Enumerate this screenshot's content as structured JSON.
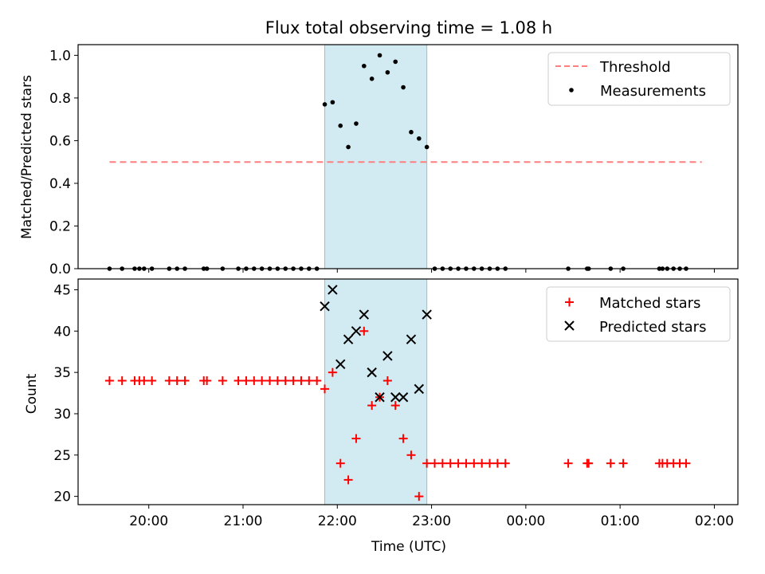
{
  "chart_data": [
    {
      "type": "scatter",
      "title": "Flux total observing time = 1.08 h",
      "ylabel": "Matched/Predicted stars",
      "xlabel": "",
      "ylim": [
        0,
        1.05
      ],
      "yticks": [
        0.0,
        0.2,
        0.4,
        0.6,
        0.8,
        1.0
      ],
      "ytick_labels": [
        "0.0",
        "0.2",
        "0.4",
        "0.6",
        "0.8",
        "1.0"
      ],
      "x_range_hours": [
        19.25,
        26.25
      ],
      "highlight_span": {
        "start": "21:52",
        "end": "22:57",
        "color": "#add8e6"
      },
      "legend_position": "top-right",
      "threshold": {
        "name": "Threshold",
        "value": 0.5,
        "start": "19:35",
        "end": "01:52",
        "color": "#ff7f7f",
        "style": "dashed"
      },
      "series": [
        {
          "name": "Measurements",
          "color": "#000000",
          "marker": "dot",
          "points": [
            {
              "time": "19:35",
              "value": 0
            },
            {
              "time": "19:43",
              "value": 0
            },
            {
              "time": "19:51",
              "value": 0
            },
            {
              "time": "19:54",
              "value": 0
            },
            {
              "time": "19:57",
              "value": 0
            },
            {
              "time": "20:02",
              "value": 0
            },
            {
              "time": "20:13",
              "value": 0
            },
            {
              "time": "20:18",
              "value": 0
            },
            {
              "time": "20:23",
              "value": 0
            },
            {
              "time": "20:35",
              "value": 0
            },
            {
              "time": "20:37",
              "value": 0
            },
            {
              "time": "20:47",
              "value": 0
            },
            {
              "time": "20:57",
              "value": 0
            },
            {
              "time": "21:02",
              "value": 0
            },
            {
              "time": "21:07",
              "value": 0
            },
            {
              "time": "21:12",
              "value": 0
            },
            {
              "time": "21:17",
              "value": 0
            },
            {
              "time": "21:22",
              "value": 0
            },
            {
              "time": "21:27",
              "value": 0
            },
            {
              "time": "21:32",
              "value": 0
            },
            {
              "time": "21:37",
              "value": 0
            },
            {
              "time": "21:42",
              "value": 0
            },
            {
              "time": "21:47",
              "value": 0
            },
            {
              "time": "21:52",
              "value": 0.77
            },
            {
              "time": "21:57",
              "value": 0.78
            },
            {
              "time": "22:02",
              "value": 0.67
            },
            {
              "time": "22:07",
              "value": 0.57
            },
            {
              "time": "22:12",
              "value": 0.68
            },
            {
              "time": "22:17",
              "value": 0.95
            },
            {
              "time": "22:22",
              "value": 0.89
            },
            {
              "time": "22:27",
              "value": 1.0
            },
            {
              "time": "22:32",
              "value": 0.92
            },
            {
              "time": "22:37",
              "value": 0.97
            },
            {
              "time": "22:42",
              "value": 0.85
            },
            {
              "time": "22:47",
              "value": 0.64
            },
            {
              "time": "22:52",
              "value": 0.61
            },
            {
              "time": "22:57",
              "value": 0.57
            },
            {
              "time": "23:02",
              "value": 0
            },
            {
              "time": "23:07",
              "value": 0
            },
            {
              "time": "23:12",
              "value": 0
            },
            {
              "time": "23:17",
              "value": 0
            },
            {
              "time": "23:22",
              "value": 0
            },
            {
              "time": "23:27",
              "value": 0
            },
            {
              "time": "23:32",
              "value": 0
            },
            {
              "time": "23:37",
              "value": 0
            },
            {
              "time": "23:42",
              "value": 0
            },
            {
              "time": "23:47",
              "value": 0
            },
            {
              "time": "00:27",
              "value": 0
            },
            {
              "time": "00:39",
              "value": 0
            },
            {
              "time": "00:40",
              "value": 0
            },
            {
              "time": "00:54",
              "value": 0
            },
            {
              "time": "01:02",
              "value": 0
            },
            {
              "time": "01:25",
              "value": 0
            },
            {
              "time": "01:27",
              "value": 0
            },
            {
              "time": "01:30",
              "value": 0
            },
            {
              "time": "01:34",
              "value": 0
            },
            {
              "time": "01:38",
              "value": 0
            },
            {
              "time": "01:42",
              "value": 0
            }
          ]
        }
      ]
    },
    {
      "type": "scatter",
      "title": "",
      "ylabel": "Count",
      "xlabel": "Time (UTC)",
      "ylim": [
        19,
        46.3
      ],
      "yticks": [
        20,
        25,
        30,
        35,
        40,
        45
      ],
      "ytick_labels": [
        "20",
        "25",
        "30",
        "35",
        "40",
        "45"
      ],
      "x_range_hours": [
        19.25,
        26.25
      ],
      "xticks": [
        "20:00",
        "21:00",
        "22:00",
        "23:00",
        "00:00",
        "01:00",
        "02:00"
      ],
      "highlight_span": {
        "start": "21:52",
        "end": "22:57",
        "color": "#add8e6"
      },
      "legend_position": "top-right",
      "series": [
        {
          "name": "Matched stars",
          "color": "#ff0000",
          "marker": "plus",
          "points": [
            {
              "time": "19:35",
              "value": 34
            },
            {
              "time": "19:43",
              "value": 34
            },
            {
              "time": "19:51",
              "value": 34
            },
            {
              "time": "19:54",
              "value": 34
            },
            {
              "time": "19:57",
              "value": 34
            },
            {
              "time": "20:02",
              "value": 34
            },
            {
              "time": "20:13",
              "value": 34
            },
            {
              "time": "20:18",
              "value": 34
            },
            {
              "time": "20:23",
              "value": 34
            },
            {
              "time": "20:35",
              "value": 34
            },
            {
              "time": "20:37",
              "value": 34
            },
            {
              "time": "20:47",
              "value": 34
            },
            {
              "time": "20:57",
              "value": 34
            },
            {
              "time": "21:02",
              "value": 34
            },
            {
              "time": "21:07",
              "value": 34
            },
            {
              "time": "21:12",
              "value": 34
            },
            {
              "time": "21:17",
              "value": 34
            },
            {
              "time": "21:22",
              "value": 34
            },
            {
              "time": "21:27",
              "value": 34
            },
            {
              "time": "21:32",
              "value": 34
            },
            {
              "time": "21:37",
              "value": 34
            },
            {
              "time": "21:42",
              "value": 34
            },
            {
              "time": "21:47",
              "value": 34
            },
            {
              "time": "21:52",
              "value": 33
            },
            {
              "time": "21:57",
              "value": 35
            },
            {
              "time": "22:02",
              "value": 24
            },
            {
              "time": "22:07",
              "value": 22
            },
            {
              "time": "22:12",
              "value": 27
            },
            {
              "time": "22:17",
              "value": 40
            },
            {
              "time": "22:22",
              "value": 31
            },
            {
              "time": "22:27",
              "value": 32
            },
            {
              "time": "22:32",
              "value": 34
            },
            {
              "time": "22:37",
              "value": 31
            },
            {
              "time": "22:42",
              "value": 27
            },
            {
              "time": "22:47",
              "value": 25
            },
            {
              "time": "22:52",
              "value": 20
            },
            {
              "time": "22:57",
              "value": 24
            },
            {
              "time": "23:02",
              "value": 24
            },
            {
              "time": "23:07",
              "value": 24
            },
            {
              "time": "23:12",
              "value": 24
            },
            {
              "time": "23:17",
              "value": 24
            },
            {
              "time": "23:22",
              "value": 24
            },
            {
              "time": "23:27",
              "value": 24
            },
            {
              "time": "23:32",
              "value": 24
            },
            {
              "time": "23:37",
              "value": 24
            },
            {
              "time": "23:42",
              "value": 24
            },
            {
              "time": "23:47",
              "value": 24
            },
            {
              "time": "00:27",
              "value": 24
            },
            {
              "time": "00:39",
              "value": 24
            },
            {
              "time": "00:40",
              "value": 24
            },
            {
              "time": "00:54",
              "value": 24
            },
            {
              "time": "01:02",
              "value": 24
            },
            {
              "time": "01:25",
              "value": 24
            },
            {
              "time": "01:27",
              "value": 24
            },
            {
              "time": "01:30",
              "value": 24
            },
            {
              "time": "01:34",
              "value": 24
            },
            {
              "time": "01:38",
              "value": 24
            },
            {
              "time": "01:42",
              "value": 24
            }
          ]
        },
        {
          "name": "Predicted stars",
          "color": "#000000",
          "marker": "x",
          "points": [
            {
              "time": "21:52",
              "value": 43
            },
            {
              "time": "21:57",
              "value": 45
            },
            {
              "time": "22:02",
              "value": 36
            },
            {
              "time": "22:07",
              "value": 39
            },
            {
              "time": "22:12",
              "value": 40
            },
            {
              "time": "22:17",
              "value": 42
            },
            {
              "time": "22:22",
              "value": 35
            },
            {
              "time": "22:27",
              "value": 32
            },
            {
              "time": "22:32",
              "value": 37
            },
            {
              "time": "22:37",
              "value": 32
            },
            {
              "time": "22:42",
              "value": 32
            },
            {
              "time": "22:47",
              "value": 39
            },
            {
              "time": "22:52",
              "value": 33
            },
            {
              "time": "22:57",
              "value": 42
            }
          ]
        }
      ]
    }
  ]
}
